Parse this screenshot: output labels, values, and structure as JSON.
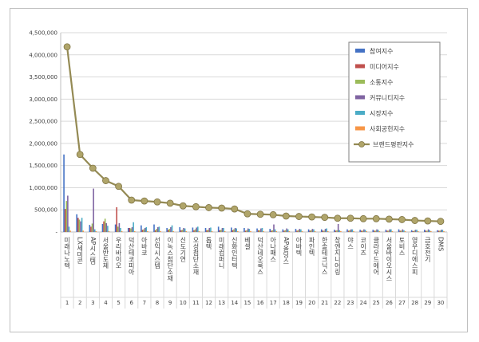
{
  "chart_data": {
    "type": "bar",
    "title": "",
    "xlabel": "",
    "ylabel": "",
    "ylim": [
      0,
      4500000
    ],
    "yticks": [
      0,
      500000,
      1000000,
      1500000,
      2000000,
      2500000,
      3000000,
      3500000,
      4000000,
      4500000
    ],
    "ytick_labels": [
      "-",
      "500,000",
      "1,000,000",
      "1,500,000",
      "2,000,000",
      "2,500,000",
      "3,000,000",
      "3,500,000",
      "4,000,000",
      "4,500,000"
    ],
    "grid": true,
    "legend_position": "right",
    "categories": [
      "미래나노텍",
      "LX세미콘",
      "AP시스템",
      "서울반도체",
      "우리바이오",
      "덕산테코피아",
      "아바코",
      "선익시스템",
      "이녹스첨단소재",
      "신도기연",
      "오성첨단소재",
      "톱텍",
      "미래컴퍼니",
      "신화인터텍",
      "베셀",
      "덕산네오룩스",
      "아나패스",
      "AP올딩스",
      "아바텍",
      "파인텍",
      "한솔테크닉스",
      "창엔지니어링",
      "야스",
      "코이즈",
      "클라우드에어",
      "서울바이오시스",
      "토비스",
      "영우디에스피",
      "금호전기",
      "DMS"
    ],
    "index_labels": [
      "1",
      "2",
      "3",
      "4",
      "5",
      "6",
      "7",
      "8",
      "9",
      "10",
      "11",
      "12",
      "13",
      "14",
      "15",
      "16",
      "17",
      "18",
      "19",
      "20",
      "21",
      "22",
      "23",
      "24",
      "25",
      "26",
      "27",
      "28",
      "29",
      "30"
    ],
    "series": [
      {
        "name": "참여지수",
        "color": "#4472c4",
        "values": [
          1750000,
          400000,
          160000,
          180000,
          170000,
          90000,
          150000,
          170000,
          90000,
          110000,
          100000,
          90000,
          120000,
          100000,
          90000,
          80000,
          70000,
          60000,
          70000,
          60000,
          60000,
          50000,
          60000,
          50000,
          50000,
          50000,
          60000,
          40000,
          50000,
          40000
        ]
      },
      {
        "name": "미디어지수",
        "color": "#c0504d",
        "values": [
          520000,
          320000,
          120000,
          240000,
          560000,
          90000,
          50000,
          40000,
          50000,
          40000,
          40000,
          40000,
          40000,
          40000,
          30000,
          40000,
          30000,
          30000,
          30000,
          30000,
          30000,
          30000,
          30000,
          30000,
          30000,
          30000,
          30000,
          20000,
          30000,
          30000
        ]
      },
      {
        "name": "소통지수",
        "color": "#9bbb59",
        "values": [
          700000,
          280000,
          190000,
          300000,
          120000,
          80000,
          60000,
          70000,
          70000,
          50000,
          60000,
          50000,
          50000,
          60000,
          40000,
          40000,
          40000,
          40000,
          40000,
          40000,
          30000,
          40000,
          40000,
          30000,
          30000,
          30000,
          30000,
          30000,
          30000,
          30000
        ]
      },
      {
        "name": "커뮤니티지수",
        "color": "#8064a2",
        "values": [
          820000,
          240000,
          980000,
          200000,
          200000,
          110000,
          90000,
          110000,
          110000,
          90000,
          100000,
          90000,
          90000,
          90000,
          80000,
          80000,
          170000,
          80000,
          70000,
          70000,
          70000,
          180000,
          60000,
          60000,
          60000,
          60000,
          60000,
          50000,
          60000,
          50000
        ]
      },
      {
        "name": "시장지수",
        "color": "#4bacc6",
        "values": [
          120000,
          320000,
          60000,
          140000,
          90000,
          220000,
          110000,
          120000,
          150000,
          80000,
          120000,
          100000,
          90000,
          80000,
          70000,
          90000,
          60000,
          60000,
          60000,
          60000,
          80000,
          40000,
          60000,
          50000,
          50000,
          60000,
          40000,
          50000,
          40000,
          50000
        ]
      },
      {
        "name": "사회공헌지수",
        "color": "#f79646",
        "values": [
          30000,
          30000,
          20000,
          20000,
          20000,
          20000,
          20000,
          20000,
          20000,
          20000,
          20000,
          20000,
          20000,
          20000,
          20000,
          20000,
          20000,
          20000,
          20000,
          20000,
          20000,
          20000,
          20000,
          20000,
          20000,
          20000,
          20000,
          20000,
          20000,
          20000
        ]
      }
    ],
    "line_series": {
      "name": "브랜드평판지수",
      "color": "#948a54",
      "values": [
        4180000,
        1750000,
        1440000,
        1160000,
        1030000,
        720000,
        700000,
        680000,
        650000,
        590000,
        570000,
        550000,
        540000,
        520000,
        410000,
        400000,
        390000,
        360000,
        350000,
        340000,
        330000,
        310000,
        310000,
        300000,
        300000,
        290000,
        280000,
        260000,
        250000,
        240000
      ]
    }
  }
}
